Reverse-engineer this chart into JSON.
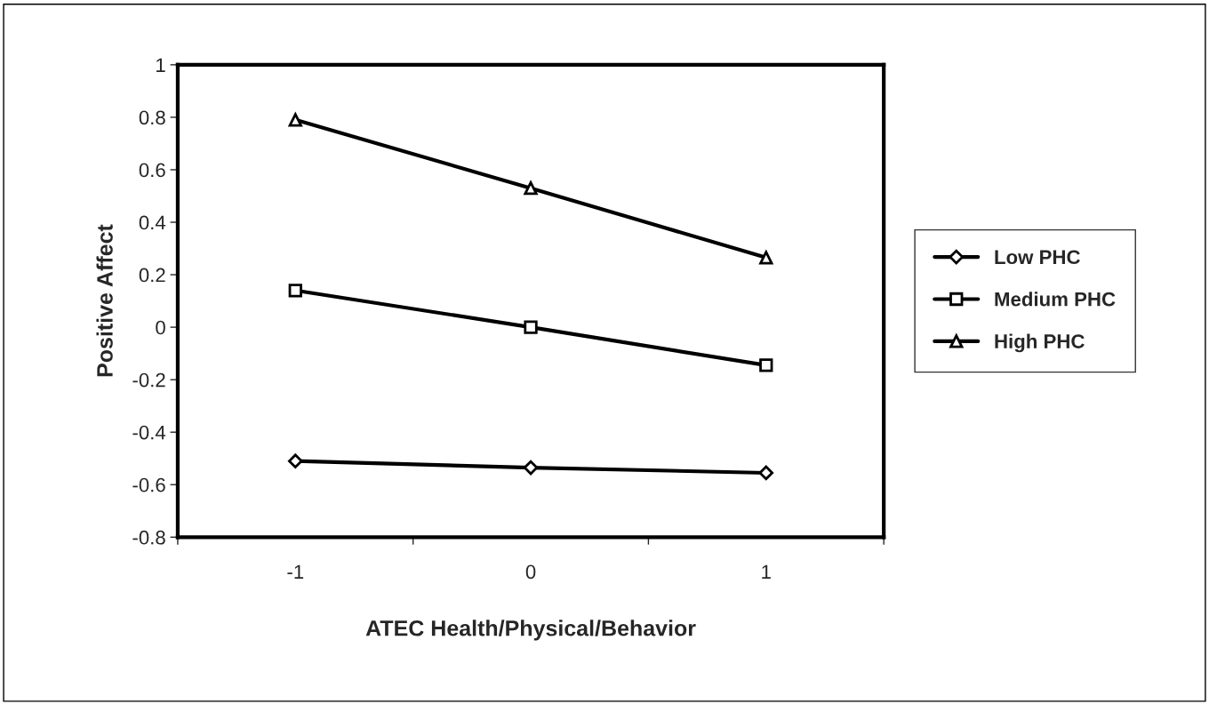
{
  "chart_data": {
    "type": "line",
    "xlabel": "ATEC Health/Physical/Behavior",
    "ylabel": "Positive Affect",
    "categories": [
      "-1",
      "0",
      "1"
    ],
    "series": [
      {
        "name": "Low PHC",
        "color": "#000000",
        "marker": "diamond",
        "values": [
          -0.51,
          -0.535,
          -0.555
        ]
      },
      {
        "name": "Medium PHC",
        "color": "#000000",
        "marker": "square",
        "values": [
          0.14,
          0,
          -0.145
        ]
      },
      {
        "name": "High PHC",
        "color": "#000000",
        "marker": "triangle",
        "values": [
          0.79,
          0.53,
          0.265
        ]
      }
    ],
    "ylim": [
      -0.8,
      1
    ],
    "yticks": [
      -0.8,
      -0.6,
      -0.4,
      -0.2,
      0,
      0.2,
      0.4,
      0.6,
      0.8,
      1
    ],
    "grid": false,
    "legend": "right",
    "line_style": "solid"
  }
}
